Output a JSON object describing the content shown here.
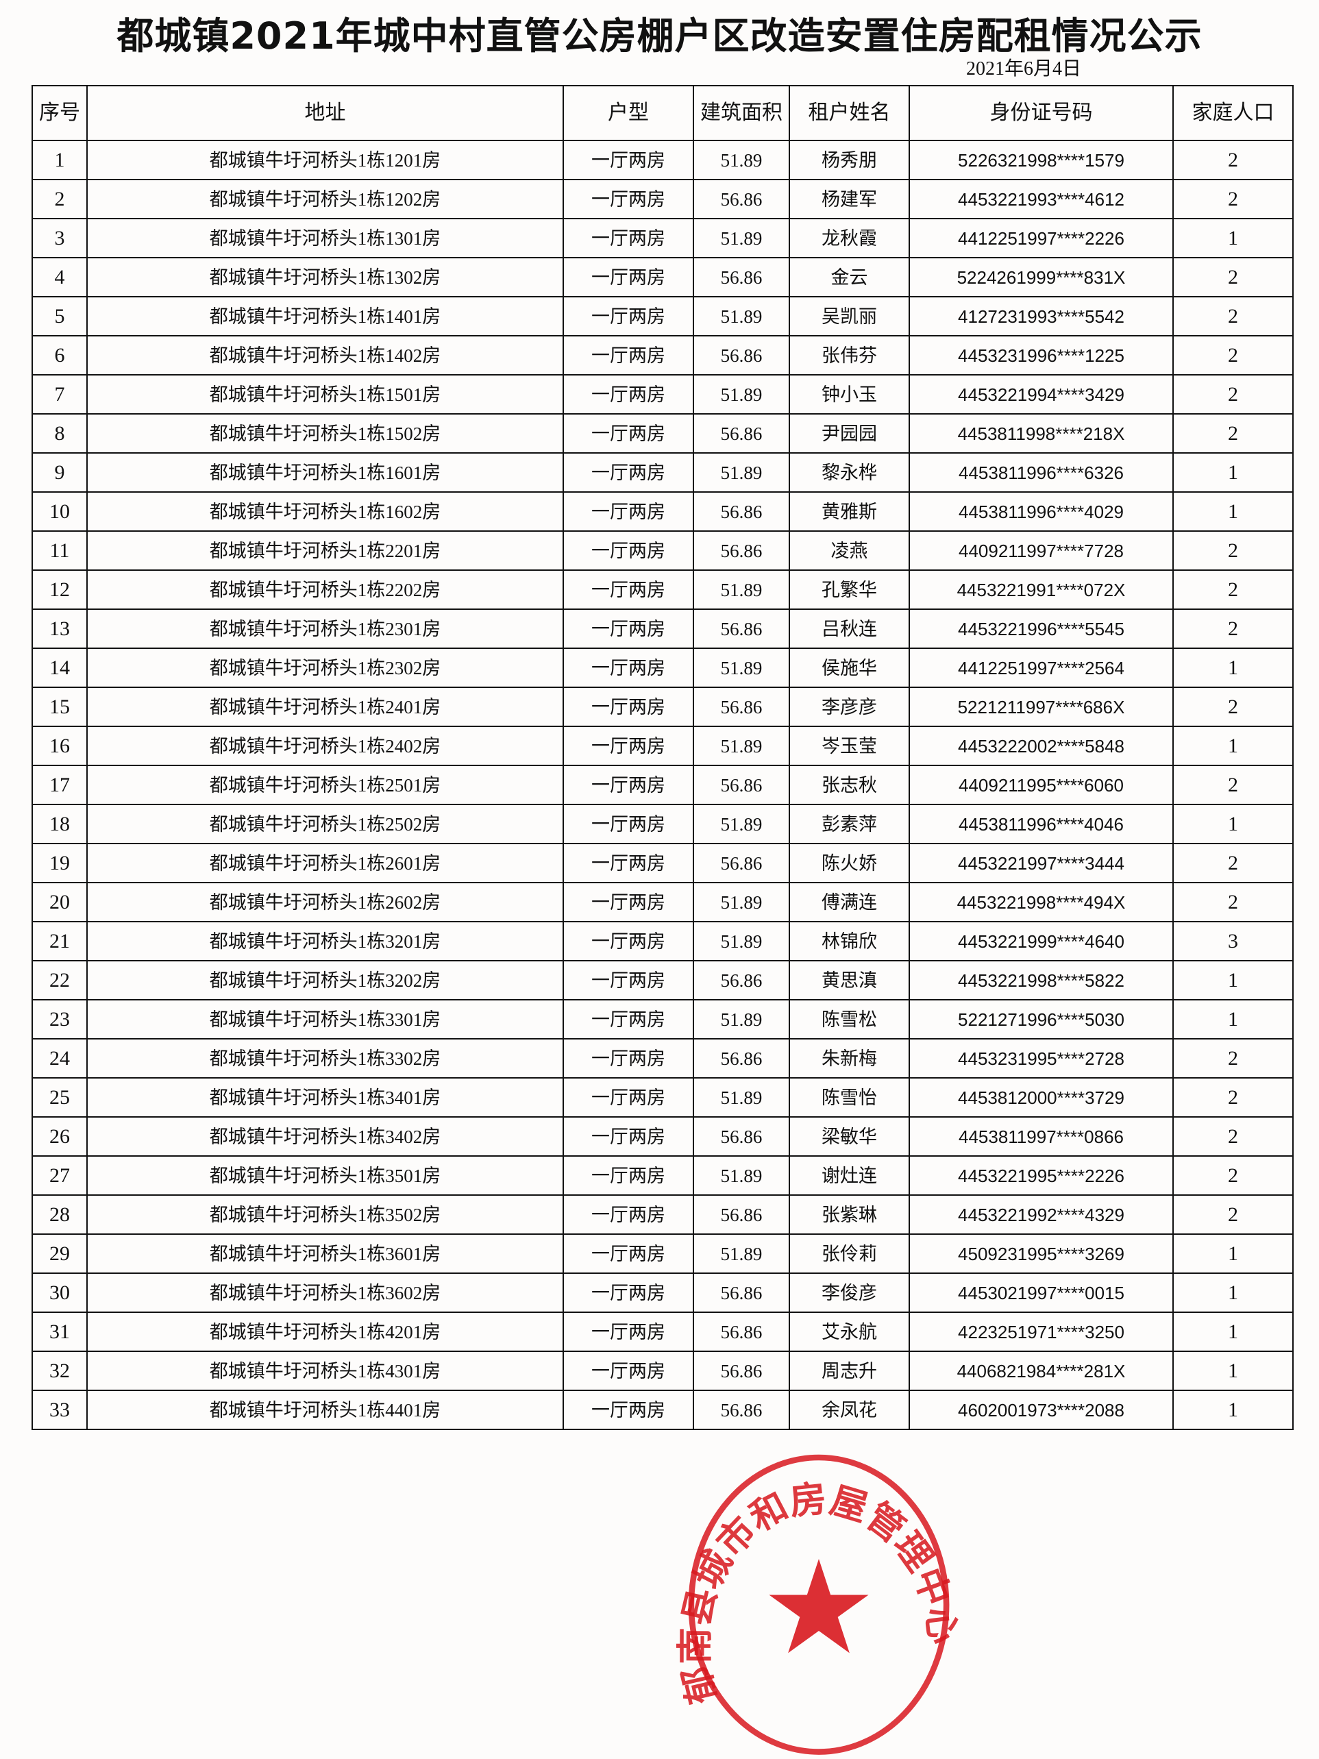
{
  "title": "都城镇2021年城中村直管公房棚户区改造安置住房配租情况公示",
  "date": "2021年6月4日",
  "table": {
    "headers": [
      "序号",
      "地址",
      "户型",
      "建筑面积",
      "租户姓名",
      "身份证号码",
      "家庭人口"
    ],
    "rows": [
      [
        "1",
        "都城镇牛圩河桥头1栋1201房",
        "一厅两房",
        "51.89",
        "杨秀朋",
        "5226321998****1579",
        "2"
      ],
      [
        "2",
        "都城镇牛圩河桥头1栋1202房",
        "一厅两房",
        "56.86",
        "杨建军",
        "4453221993****4612",
        "2"
      ],
      [
        "3",
        "都城镇牛圩河桥头1栋1301房",
        "一厅两房",
        "51.89",
        "龙秋霞",
        "4412251997****2226",
        "1"
      ],
      [
        "4",
        "都城镇牛圩河桥头1栋1302房",
        "一厅两房",
        "56.86",
        "金云",
        "5224261999****831X",
        "2"
      ],
      [
        "5",
        "都城镇牛圩河桥头1栋1401房",
        "一厅两房",
        "51.89",
        "吴凯丽",
        "4127231993****5542",
        "2"
      ],
      [
        "6",
        "都城镇牛圩河桥头1栋1402房",
        "一厅两房",
        "56.86",
        "张伟芬",
        "4453231996****1225",
        "2"
      ],
      [
        "7",
        "都城镇牛圩河桥头1栋1501房",
        "一厅两房",
        "51.89",
        "钟小玉",
        "4453221994****3429",
        "2"
      ],
      [
        "8",
        "都城镇牛圩河桥头1栋1502房",
        "一厅两房",
        "56.86",
        "尹园园",
        "4453811998****218X",
        "2"
      ],
      [
        "9",
        "都城镇牛圩河桥头1栋1601房",
        "一厅两房",
        "51.89",
        "黎永桦",
        "4453811996****6326",
        "1"
      ],
      [
        "10",
        "都城镇牛圩河桥头1栋1602房",
        "一厅两房",
        "56.86",
        "黄雅斯",
        "4453811996****4029",
        "1"
      ],
      [
        "11",
        "都城镇牛圩河桥头1栋2201房",
        "一厅两房",
        "56.86",
        "凌燕",
        "4409211997****7728",
        "2"
      ],
      [
        "12",
        "都城镇牛圩河桥头1栋2202房",
        "一厅两房",
        "51.89",
        "孔繁华",
        "4453221991****072X",
        "2"
      ],
      [
        "13",
        "都城镇牛圩河桥头1栋2301房",
        "一厅两房",
        "56.86",
        "吕秋连",
        "4453221996****5545",
        "2"
      ],
      [
        "14",
        "都城镇牛圩河桥头1栋2302房",
        "一厅两房",
        "51.89",
        "侯施华",
        "4412251997****2564",
        "1"
      ],
      [
        "15",
        "都城镇牛圩河桥头1栋2401房",
        "一厅两房",
        "56.86",
        "李彦彦",
        "5221211997****686X",
        "2"
      ],
      [
        "16",
        "都城镇牛圩河桥头1栋2402房",
        "一厅两房",
        "51.89",
        "岑玉莹",
        "4453222002****5848",
        "1"
      ],
      [
        "17",
        "都城镇牛圩河桥头1栋2501房",
        "一厅两房",
        "56.86",
        "张志秋",
        "4409211995****6060",
        "2"
      ],
      [
        "18",
        "都城镇牛圩河桥头1栋2502房",
        "一厅两房",
        "51.89",
        "彭素萍",
        "4453811996****4046",
        "1"
      ],
      [
        "19",
        "都城镇牛圩河桥头1栋2601房",
        "一厅两房",
        "56.86",
        "陈火娇",
        "4453221997****3444",
        "2"
      ],
      [
        "20",
        "都城镇牛圩河桥头1栋2602房",
        "一厅两房",
        "51.89",
        "傅满连",
        "4453221998****494X",
        "2"
      ],
      [
        "21",
        "都城镇牛圩河桥头1栋3201房",
        "一厅两房",
        "51.89",
        "林锦欣",
        "4453221999****4640",
        "3"
      ],
      [
        "22",
        "都城镇牛圩河桥头1栋3202房",
        "一厅两房",
        "56.86",
        "黄思滇",
        "4453221998****5822",
        "1"
      ],
      [
        "23",
        "都城镇牛圩河桥头1栋3301房",
        "一厅两房",
        "51.89",
        "陈雪松",
        "5221271996****5030",
        "1"
      ],
      [
        "24",
        "都城镇牛圩河桥头1栋3302房",
        "一厅两房",
        "56.86",
        "朱新梅",
        "4453231995****2728",
        "2"
      ],
      [
        "25",
        "都城镇牛圩河桥头1栋3401房",
        "一厅两房",
        "51.89",
        "陈雪怡",
        "4453812000****3729",
        "2"
      ],
      [
        "26",
        "都城镇牛圩河桥头1栋3402房",
        "一厅两房",
        "56.86",
        "梁敏华",
        "4453811997****0866",
        "2"
      ],
      [
        "27",
        "都城镇牛圩河桥头1栋3501房",
        "一厅两房",
        "51.89",
        "谢灶连",
        "4453221995****2226",
        "2"
      ],
      [
        "28",
        "都城镇牛圩河桥头1栋3502房",
        "一厅两房",
        "56.86",
        "张紫琳",
        "4453221992****4329",
        "2"
      ],
      [
        "29",
        "都城镇牛圩河桥头1栋3601房",
        "一厅两房",
        "51.89",
        "张伶莉",
        "4509231995****3269",
        "1"
      ],
      [
        "30",
        "都城镇牛圩河桥头1栋3602房",
        "一厅两房",
        "56.86",
        "李俊彦",
        "4453021997****0015",
        "1"
      ],
      [
        "31",
        "都城镇牛圩河桥头1栋4201房",
        "一厅两房",
        "56.86",
        "艾永航",
        "4223251971****3250",
        "1"
      ],
      [
        "32",
        "都城镇牛圩河桥头1栋4301房",
        "一厅两房",
        "56.86",
        "周志升",
        "4406821984****281X",
        "1"
      ],
      [
        "33",
        "都城镇牛圩河桥头1栋4401房",
        "一厅两房",
        "56.86",
        "余凤花",
        "4602001973****2088",
        "1"
      ]
    ]
  },
  "stamp": {
    "text": "郁南县城市和房屋管理中心",
    "color": "#d8181e",
    "icon": "star-icon"
  }
}
